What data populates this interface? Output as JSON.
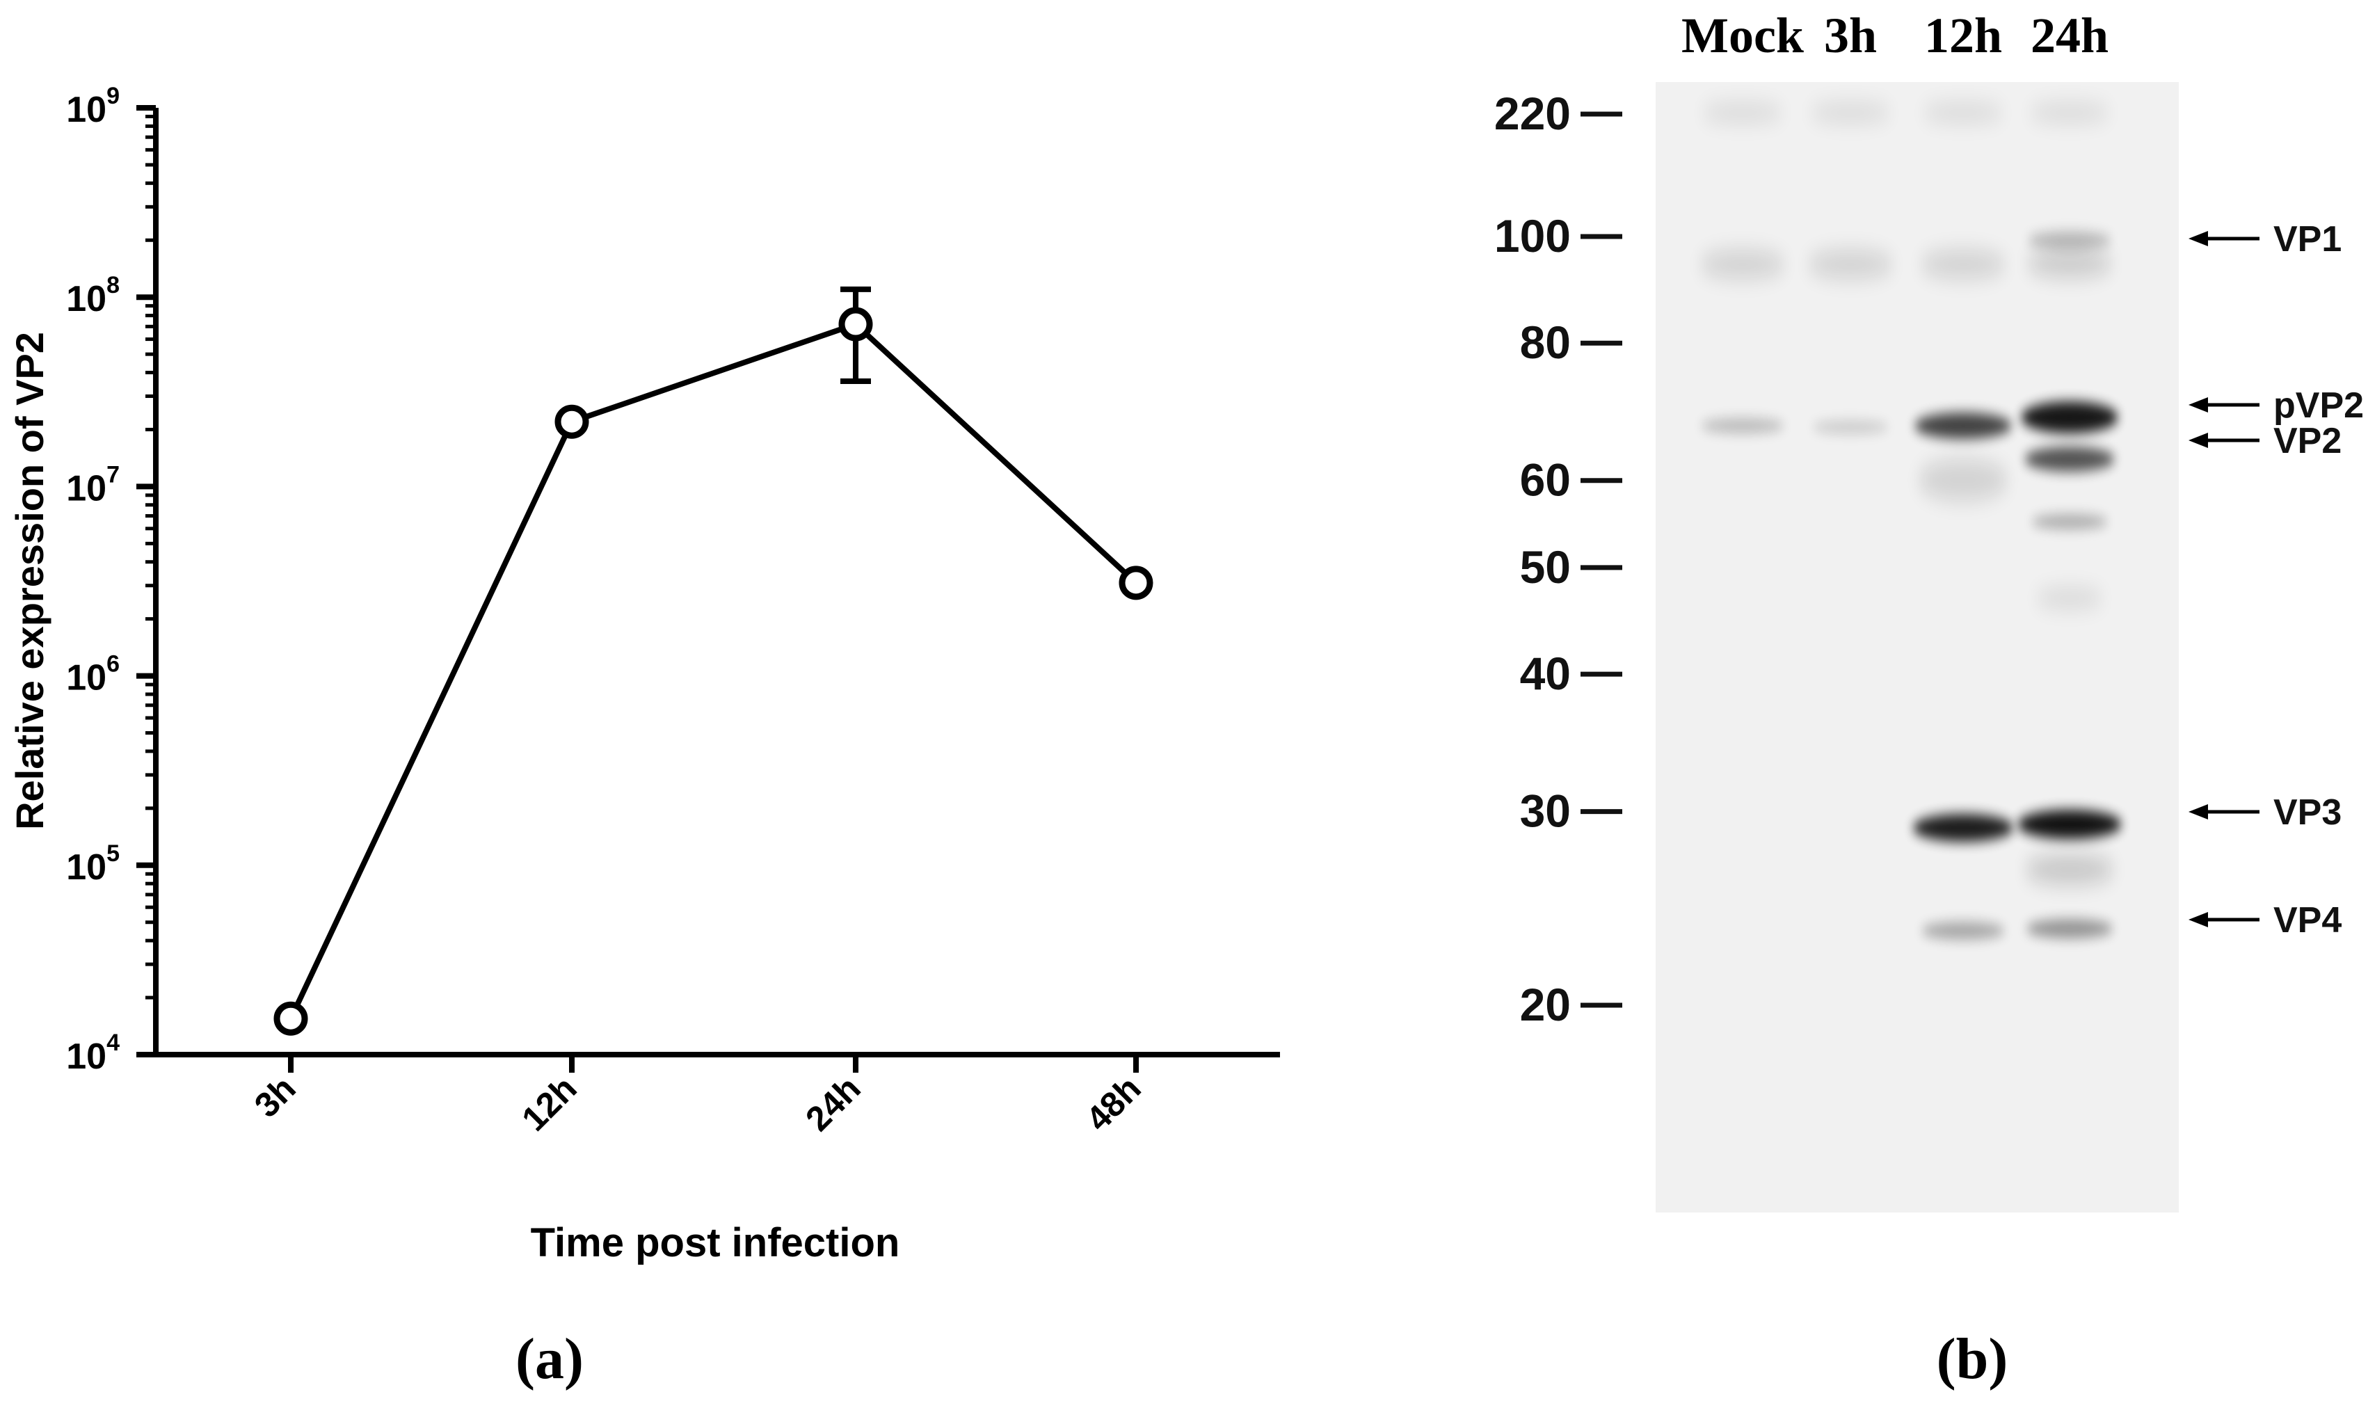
{
  "panel_a": {
    "label": "(a)",
    "chart_data": {
      "type": "line",
      "title": "",
      "xlabel": "Time post infection",
      "ylabel": "Relative expression of VP2",
      "yscale": "log",
      "ylim": [
        10000,
        1000000000
      ],
      "categories": [
        "3h",
        "12h",
        "24h",
        "48h"
      ],
      "yticks": [
        {
          "value": 10000,
          "base": "10",
          "exp": "4"
        },
        {
          "value": 100000,
          "base": "10",
          "exp": "5"
        },
        {
          "value": 1000000,
          "base": "10",
          "exp": "6"
        },
        {
          "value": 10000000,
          "base": "10",
          "exp": "7"
        },
        {
          "value": 100000000,
          "base": "10",
          "exp": "8"
        },
        {
          "value": 1000000000,
          "base": "10",
          "exp": "9"
        }
      ],
      "series": [
        {
          "values": [
            15500,
            22000000,
            72000000,
            3100000
          ],
          "error_low": [
            null,
            null,
            36000000,
            null
          ],
          "error_high": [
            null,
            null,
            110000000,
            null
          ]
        }
      ],
      "grid": false,
      "color": "#000000"
    }
  },
  "panel_b": {
    "label": "(b)",
    "lane_labels": [
      "Mock",
      "3h",
      "12h",
      "24h"
    ],
    "markers": [
      {
        "label": "220",
        "kda": 220
      },
      {
        "label": "100",
        "kda": 100
      },
      {
        "label": "80",
        "kda": 80
      },
      {
        "label": "60",
        "kda": 60
      },
      {
        "label": "50",
        "kda": 50
      },
      {
        "label": "40",
        "kda": 40
      },
      {
        "label": "30",
        "kda": 30
      },
      {
        "label": "20",
        "kda": 20
      }
    ],
    "bands": [
      {
        "label": "VP1"
      },
      {
        "label": "pVP2"
      },
      {
        "label": "VP2"
      },
      {
        "label": "VP3"
      },
      {
        "label": "VP4"
      }
    ],
    "gel_color": "#f1f1f1"
  }
}
